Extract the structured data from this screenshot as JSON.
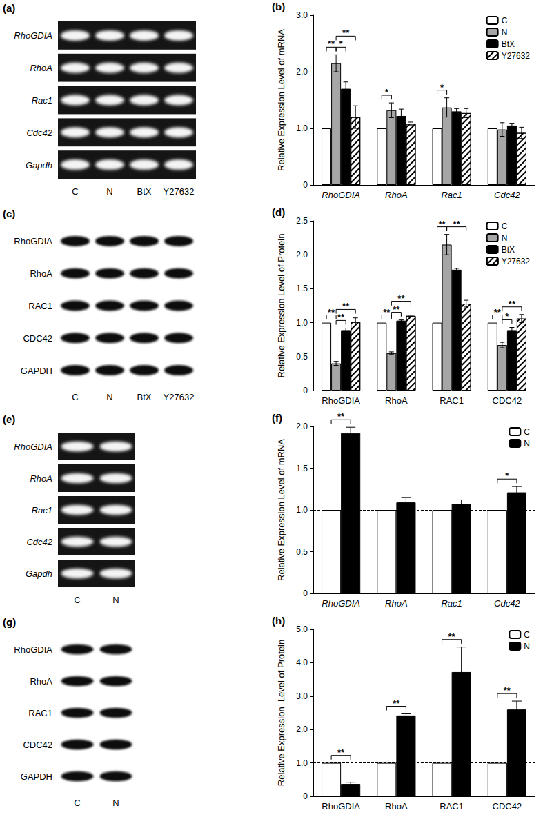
{
  "chart_data": [
    {
      "type": "bar",
      "panel": "(b)",
      "y_label": "Relative Expression Level of mRNA",
      "categories": [
        "RhoGDIA",
        "RhoA",
        "Rac1",
        "Cdc42"
      ],
      "series": [
        {
          "name": "C",
          "color": "#ffffff",
          "values": [
            1,
            1,
            1,
            1
          ],
          "errors": [
            0,
            0,
            0,
            0
          ]
        },
        {
          "name": "N",
          "color": "#a6a6a6",
          "values": [
            2.15,
            1.32,
            1.37,
            0.98
          ],
          "errors": [
            0.15,
            0.13,
            0.17,
            0.12
          ]
        },
        {
          "name": "BtX",
          "color": "#000000",
          "values": [
            1.7,
            1.22,
            1.3,
            1.05
          ],
          "errors": [
            0.12,
            0.12,
            0.05,
            0.04
          ]
        },
        {
          "name": "Y27632",
          "color": "#ffffff",
          "values": [
            1.2,
            1.08,
            1.27,
            0.92
          ],
          "errors": [
            0.2,
            0.03,
            0.08,
            0.1
          ]
        }
      ],
      "annotations": [
        {
          "category": "RhoGDIA",
          "from": "C",
          "to": "N",
          "label": "**"
        },
        {
          "category": "RhoGDIA",
          "from": "N",
          "to": "BtX",
          "label": "*"
        },
        {
          "category": "RhoGDIA",
          "from": "N",
          "to": "Y27632",
          "label": "**"
        },
        {
          "category": "RhoA",
          "from": "C",
          "to": "N",
          "label": "*"
        },
        {
          "category": "Rac1",
          "from": "C",
          "to": "N",
          "label": "*"
        }
      ],
      "ylim": [
        0,
        3
      ],
      "yticks": [
        0,
        {
          "value": 1,
          "label": "1.0"
        },
        {
          "value": 2,
          "label": "2.0"
        },
        {
          "value": 3,
          "label": "3.0"
        }
      ],
      "grid": false,
      "legend": "upper right"
    },
    {
      "type": "bar",
      "panel": "(d)",
      "y_label": "Relative Expression Level of Protein",
      "categories": [
        "RhoGDIA",
        "RhoA",
        "RAC1",
        "CDC42"
      ],
      "series": [
        {
          "name": "C",
          "color": "#ffffff",
          "values": [
            1,
            1,
            1,
            1
          ],
          "errors": [
            0,
            0,
            0,
            0
          ]
        },
        {
          "name": "N",
          "color": "#a6a6a6",
          "values": [
            0.4,
            0.55,
            2.15,
            0.67
          ],
          "errors": [
            0.03,
            0.02,
            0.15,
            0.04
          ]
        },
        {
          "name": "BtX",
          "color": "#000000",
          "values": [
            0.89,
            1.03,
            1.78,
            0.89
          ],
          "errors": [
            0.03,
            0.01,
            0.02,
            0.04
          ]
        },
        {
          "name": "Y27632",
          "color": "#ffffff",
          "values": [
            1.01,
            1.1,
            1.28,
            1.06
          ],
          "errors": [
            0.06,
            0.01,
            0.05,
            0.06
          ]
        }
      ],
      "annotations": [
        {
          "category": "RhoGDIA",
          "from": "C",
          "to": "N",
          "label": "**"
        },
        {
          "category": "RhoGDIA",
          "from": "N",
          "to": "BtX",
          "label": "**"
        },
        {
          "category": "RhoGDIA",
          "from": "N",
          "to": "Y27632",
          "label": "**"
        },
        {
          "category": "RhoA",
          "from": "C",
          "to": "N",
          "label": "**"
        },
        {
          "category": "RhoA",
          "from": "N",
          "to": "BtX",
          "label": "**"
        },
        {
          "category": "RhoA",
          "from": "N",
          "to": "Y27632",
          "label": "**"
        },
        {
          "category": "RAC1",
          "from": "C",
          "to": "N",
          "label": "**"
        },
        {
          "category": "RAC1",
          "from": "N",
          "to": "Y27632",
          "label": "**"
        },
        {
          "category": "CDC42",
          "from": "C",
          "to": "N",
          "label": "**"
        },
        {
          "category": "CDC42",
          "from": "N",
          "to": "BtX",
          "label": "*"
        },
        {
          "category": "CDC42",
          "from": "N",
          "to": "Y27632",
          "label": "**"
        }
      ],
      "ylim": [
        0,
        2.5
      ],
      "yticks": [
        0,
        0.5,
        {
          "value": 1,
          "label": "1.0"
        },
        1.5,
        {
          "value": 2,
          "label": "2.0"
        },
        2.5
      ],
      "grid": false,
      "legend": "upper right"
    },
    {
      "type": "bar",
      "panel": "(f)",
      "y_label": "Relative Expression Level of mRNA",
      "categories": [
        "RhoGDIA",
        "RhoA",
        "Rac1",
        "Cdc42"
      ],
      "series": [
        {
          "name": "C",
          "color": "#ffffff",
          "values": [
            1,
            1,
            1,
            1
          ],
          "errors": [
            0,
            0,
            0,
            0
          ]
        },
        {
          "name": "N",
          "color": "#000000",
          "values": [
            1.92,
            1.09,
            1.07,
            1.21
          ],
          "errors": [
            0.07,
            0.06,
            0.05,
            0.07
          ]
        }
      ],
      "annotations": [
        {
          "category": "RhoGDIA",
          "from": "C",
          "to": "N",
          "label": "**"
        },
        {
          "category": "Cdc42",
          "from": "C",
          "to": "N",
          "label": "*"
        }
      ],
      "reference_line": 1,
      "ylim": [
        0,
        2
      ],
      "yticks": [
        0,
        0.5,
        {
          "value": 1,
          "label": "1.0"
        },
        1.5,
        {
          "value": 2,
          "label": "2.0"
        }
      ],
      "grid": false,
      "legend": "upper right"
    },
    {
      "type": "bar",
      "panel": "(h)",
      "y_label": "Relative Expression  Level of Protein",
      "categories": [
        "RhoGDIA",
        "RhoA",
        "RAC1",
        "CDC42"
      ],
      "series": [
        {
          "name": "C",
          "color": "#ffffff",
          "values": [
            1,
            1,
            1,
            1
          ],
          "errors": [
            0,
            0,
            0,
            0
          ]
        },
        {
          "name": "N",
          "color": "#000000",
          "values": [
            0.37,
            2.42,
            3.72,
            2.6
          ],
          "errors": [
            0.05,
            0.05,
            0.75,
            0.25
          ]
        }
      ],
      "annotations": [
        {
          "category": "RhoGDIA",
          "from": "C",
          "to": "N",
          "label": "**"
        },
        {
          "category": "RhoA",
          "from": "C",
          "to": "N",
          "label": "**"
        },
        {
          "category": "RAC1",
          "from": "C",
          "to": "N",
          "label": "**"
        },
        {
          "category": "CDC42",
          "from": "C",
          "to": "N",
          "label": "**"
        }
      ],
      "reference_line": 1,
      "ylim": [
        0,
        5
      ],
      "yticks": [
        0,
        {
          "value": 1,
          "label": "1.0"
        },
        {
          "value": 2,
          "label": "2.0"
        },
        {
          "value": 3,
          "label": "3.0"
        },
        {
          "value": 4,
          "label": "4.0"
        },
        {
          "value": 5,
          "label": "5.0"
        }
      ],
      "grid": false,
      "legend": "upper right"
    }
  ],
  "blots": [
    {
      "panel": "(a)",
      "rows": [
        "RhoGDIA",
        "RhoA",
        "Rac1",
        "Cdc42",
        "Gapdh"
      ],
      "lanes": [
        "C",
        "N",
        "BtX",
        "Y27632"
      ]
    },
    {
      "panel": "(c)",
      "rows": [
        "RhoGDIA",
        "RhoA",
        "RAC1",
        "CDC42",
        "GAPDH"
      ],
      "lanes": [
        "C",
        "N",
        "BtX",
        "Y27632"
      ]
    },
    {
      "panel": "(e)",
      "rows": [
        "RhoGDIA",
        "RhoA",
        "Rac1",
        "Cdc42",
        "Gapdh"
      ],
      "lanes": [
        "C",
        "N"
      ]
    },
    {
      "panel": "(g)",
      "rows": [
        "RhoGDIA",
        "RhoA",
        "RAC1",
        "CDC42",
        "GAPDH"
      ],
      "lanes": [
        "C",
        "N"
      ]
    }
  ]
}
